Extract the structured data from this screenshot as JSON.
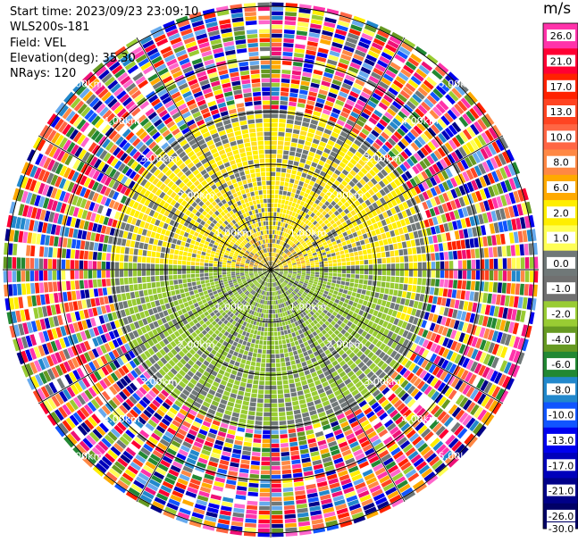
{
  "header": {
    "start_time": "Start time: 2023/09/23 23:09:10",
    "instrument": "WLS200s-181",
    "field": "Field: VEL",
    "elevation": "Elevation(deg): 35.30",
    "nrays": "NRays: 120"
  },
  "ring_labels": [
    "1.00km",
    "2.00km",
    "3.00km",
    "4.00km",
    "5.00km"
  ],
  "colorbar": {
    "unit": "m/s",
    "levels": [
      "26.0",
      "21.0",
      "17.0",
      "13.0",
      "10.0",
      "8.0",
      "6.0",
      "2.0",
      "1.0",
      "0.0",
      "-1.0",
      "-2.0",
      "-4.0",
      "-6.0",
      "-8.0",
      "-10.0",
      "-13.0",
      "-17.0",
      "-21.0",
      "-26.0",
      "-30.0"
    ],
    "colors": [
      "#ff33aa",
      "#ff0033",
      "#ff2200",
      "#ff4422",
      "#ff6644",
      "#ff8844",
      "#ffaa00",
      "#ffee00",
      "#ffff55",
      "#707878",
      "#707070",
      "#99cc33",
      "#669922",
      "#228833",
      "#2288cc",
      "#1155ff",
      "#0000ee",
      "#0000bb",
      "#000088",
      "#000066"
    ]
  }
}
